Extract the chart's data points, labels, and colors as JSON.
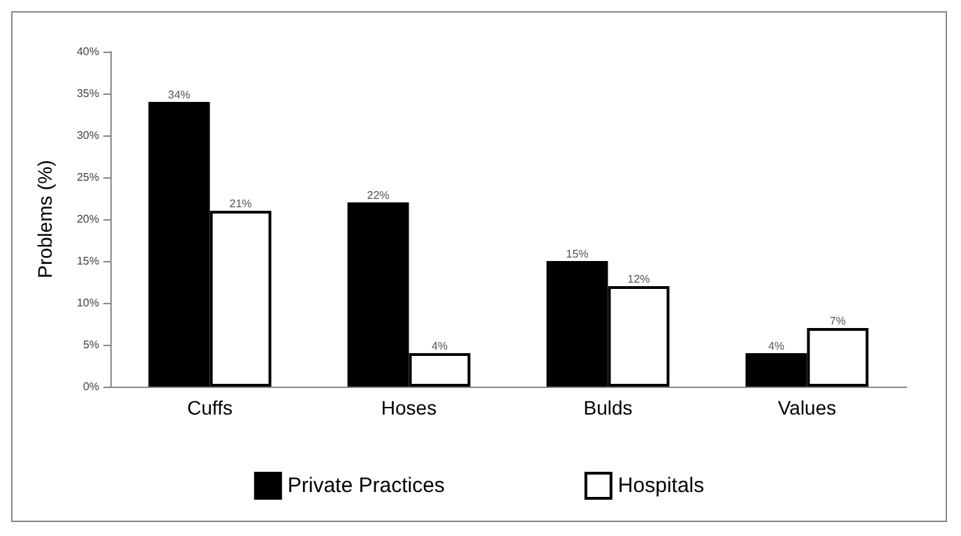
{
  "chart_data": {
    "type": "bar",
    "ylabel": "Problems (%)",
    "categories": [
      "Cuffs",
      "Hoses",
      "Bulds",
      "Values"
    ],
    "series": [
      {
        "name": "Private Practices",
        "color": "#000000",
        "values": [
          34,
          22,
          15,
          4
        ],
        "value_labels": [
          "34%",
          "22%",
          "15%",
          "4%"
        ]
      },
      {
        "name": "Hospitals",
        "color": "#ffffff",
        "values": [
          21,
          4,
          12,
          7
        ],
        "value_labels": [
          "21%",
          "4%",
          "12%",
          "7%"
        ]
      }
    ],
    "ylim": [
      0,
      40
    ],
    "yticks": [
      {
        "value": 0,
        "label": "0%"
      },
      {
        "value": 5,
        "label": "5%"
      },
      {
        "value": 10,
        "label": "10%"
      },
      {
        "value": 15,
        "label": "15%"
      },
      {
        "value": 20,
        "label": "20%"
      },
      {
        "value": 25,
        "label": "25%"
      },
      {
        "value": 30,
        "label": "30%"
      },
      {
        "value": 35,
        "label": "35%"
      },
      {
        "value": 40,
        "label": "40%"
      }
    ],
    "grid": false,
    "legend": "bottom"
  }
}
